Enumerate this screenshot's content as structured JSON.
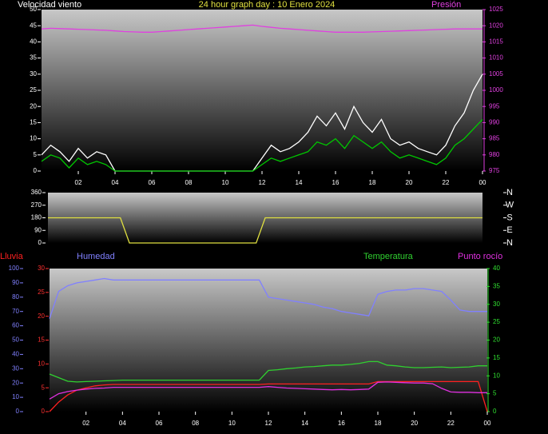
{
  "chart_data": [
    {
      "type": "line",
      "title": "24 hour graph day : 10 Enero 2024",
      "ylabel": "Velocidad viento",
      "y2label": "Presión",
      "x": [
        0,
        0.5,
        1,
        1.5,
        2,
        2.5,
        3,
        3.5,
        4,
        4.5,
        5,
        5.5,
        6,
        6.5,
        7,
        7.5,
        8,
        8.5,
        9,
        9.5,
        10,
        10.5,
        11,
        11.5,
        12,
        12.5,
        13,
        13.5,
        14,
        14.5,
        15,
        15.5,
        16,
        16.5,
        17,
        17.5,
        18,
        18.5,
        19,
        19.5,
        20,
        20.5,
        21,
        21.5,
        22,
        22.5,
        23,
        23.5,
        24
      ],
      "xlim": [
        0,
        24
      ],
      "xticks": [
        {
          "value": 2,
          "label": "02"
        },
        {
          "value": 4,
          "label": "04"
        },
        {
          "value": 6,
          "label": "06"
        },
        {
          "value": 8,
          "label": "08"
        },
        10,
        12,
        14,
        16,
        18,
        20,
        22,
        {
          "value": 24,
          "label": "00"
        }
      ],
      "ylim": [
        0,
        50
      ],
      "yticks": [
        0,
        5,
        10,
        15,
        20,
        25,
        30,
        35,
        40,
        45,
        50
      ],
      "y2lim": [
        975,
        1025
      ],
      "y2ticks": [
        975,
        980,
        985,
        990,
        995,
        1000,
        1005,
        1010,
        1015,
        1020,
        1025
      ],
      "series": [
        {
          "color": "#ffffff",
          "values": [
            5,
            8,
            6,
            3,
            7,
            4,
            6,
            5,
            0,
            0,
            0,
            0,
            0,
            0,
            0,
            0,
            0,
            0,
            0,
            0,
            0,
            0,
            0,
            0,
            4,
            8,
            6,
            7,
            9,
            12,
            17,
            14,
            18,
            13,
            20,
            15,
            12,
            16,
            10,
            8,
            9,
            7,
            6,
            5,
            8,
            14,
            18,
            25,
            30
          ]
        },
        {
          "color": "#00c800",
          "values": [
            3,
            5,
            4,
            1,
            4,
            2,
            3,
            2,
            0,
            0,
            0,
            0,
            0,
            0,
            0,
            0,
            0,
            0,
            0,
            0,
            0,
            0,
            0,
            0,
            2,
            4,
            3,
            4,
            5,
            6,
            9,
            8,
            10,
            7,
            11,
            9,
            7,
            9,
            6,
            4,
            5,
            4,
            3,
            2,
            4,
            8,
            10,
            13,
            16
          ]
        },
        {
          "color": "#e040e0",
          "axis": "y2",
          "values": [
            1019,
            1019.2,
            1019.1,
            1019,
            1018.9,
            1018.8,
            1018.7,
            1018.6,
            1018.4,
            1018.2,
            1018.1,
            1018,
            1018,
            1018.2,
            1018.4,
            1018.6,
            1018.8,
            1019,
            1019.2,
            1019.4,
            1019.6,
            1019.8,
            1020,
            1020.2,
            1019.8,
            1019.5,
            1019.2,
            1019,
            1018.8,
            1018.6,
            1018.4,
            1018.2,
            1018,
            1018,
            1018,
            1018,
            1018.1,
            1018.2,
            1018.3,
            1018.4,
            1018.5,
            1018.6,
            1018.7,
            1018.8,
            1018.9,
            1019,
            1019,
            1019,
            1019
          ]
        }
      ]
    },
    {
      "type": "line",
      "x": [
        0,
        0.5,
        1,
        1.5,
        2,
        2.5,
        3,
        3.5,
        4,
        4.5,
        5,
        5.5,
        6,
        6.5,
        7,
        7.5,
        8,
        8.5,
        9,
        9.5,
        10,
        10.5,
        11,
        11.5,
        12,
        12.5,
        13,
        13.5,
        14,
        14.5,
        15,
        15.5,
        16,
        16.5,
        17,
        17.5,
        18,
        18.5,
        19,
        19.5,
        20,
        20.5,
        21,
        21.5,
        22,
        22.5,
        23,
        23.5,
        24
      ],
      "xlim": [
        0,
        24
      ],
      "ylim": [
        0,
        360
      ],
      "yticks": [
        0,
        90,
        180,
        270,
        360
      ],
      "y2lim": [
        0,
        360
      ],
      "y2ticks": [
        {
          "value": 0,
          "label": "N"
        },
        {
          "value": 90,
          "label": "E"
        },
        {
          "value": 180,
          "label": "S"
        },
        {
          "value": 270,
          "label": "W"
        },
        {
          "value": 360,
          "label": "N"
        }
      ],
      "series": [
        {
          "color": "#e0e040",
          "values": [
            180,
            180,
            180,
            180,
            180,
            180,
            180,
            180,
            180,
            0,
            0,
            0,
            0,
            0,
            0,
            0,
            0,
            0,
            0,
            0,
            0,
            0,
            0,
            0,
            180,
            180,
            180,
            180,
            180,
            180,
            180,
            180,
            180,
            180,
            180,
            180,
            180,
            180,
            180,
            180,
            180,
            180,
            180,
            180,
            180,
            180,
            180,
            180,
            180
          ]
        }
      ]
    },
    {
      "type": "line",
      "x": [
        0,
        0.5,
        1,
        1.5,
        2,
        2.5,
        3,
        3.5,
        4,
        4.5,
        5,
        5.5,
        6,
        6.5,
        7,
        7.5,
        8,
        8.5,
        9,
        9.5,
        10,
        10.5,
        11,
        11.5,
        12,
        12.5,
        13,
        13.5,
        14,
        14.5,
        15,
        15.5,
        16,
        16.5,
        17,
        17.5,
        18,
        18.5,
        19,
        19.5,
        20,
        20.5,
        21,
        21.5,
        22,
        22.5,
        23,
        23.5,
        24
      ],
      "xlim": [
        0,
        24
      ],
      "xticks": [
        {
          "value": 2,
          "label": "02"
        },
        {
          "value": 4,
          "label": "04"
        },
        {
          "value": 6,
          "label": "06"
        },
        {
          "value": 8,
          "label": "08"
        },
        10,
        12,
        14,
        16,
        18,
        20,
        22,
        {
          "value": 24,
          "label": "00"
        }
      ],
      "ylim": [
        0,
        30
      ],
      "yticks": [
        0,
        5,
        10,
        15,
        20,
        25,
        30
      ],
      "y2lim": [
        0,
        40
      ],
      "y2ticks": [
        0,
        5,
        10,
        15,
        20,
        25,
        30,
        35,
        40
      ],
      "y3lim": [
        0,
        100
      ],
      "y3ticks": [
        0,
        10,
        20,
        30,
        40,
        50,
        60,
        70,
        80,
        90,
        100
      ],
      "series": [
        {
          "name": "Lluvia",
          "color": "#ff2020",
          "values": [
            0,
            2,
            3.5,
            4.5,
            5,
            5.4,
            5.6,
            5.7,
            5.7,
            5.7,
            5.7,
            5.7,
            5.7,
            5.7,
            5.7,
            5.7,
            5.7,
            5.7,
            5.7,
            5.7,
            5.7,
            5.7,
            5.7,
            5.7,
            5.8,
            5.8,
            5.8,
            5.8,
            5.8,
            5.8,
            5.8,
            5.8,
            5.8,
            5.8,
            5.8,
            5.8,
            6.3,
            6.3,
            6.3,
            6.3,
            6.3,
            6.3,
            6.3,
            6.3,
            6.3,
            6.3,
            6.3,
            6.3,
            0
          ]
        },
        {
          "name": "Humedad",
          "color": "#8080ff",
          "axis": "y3",
          "values": [
            65,
            84,
            88,
            90,
            91,
            92,
            93,
            92,
            92,
            92,
            92,
            92,
            92,
            92,
            92,
            92,
            92,
            92,
            92,
            92,
            92,
            92,
            92,
            92,
            80,
            79,
            78,
            77,
            76,
            75,
            73,
            72,
            70,
            69,
            68,
            67,
            82,
            84,
            85,
            85,
            86,
            86,
            85,
            84,
            78,
            71,
            70,
            70,
            70
          ]
        },
        {
          "name": "Temperatura",
          "color": "#30d030",
          "axis": "y2",
          "values": [
            10.5,
            9.5,
            8.5,
            8.3,
            8.4,
            8.5,
            8.6,
            8.7,
            8.8,
            8.8,
            8.8,
            8.8,
            8.8,
            8.8,
            8.8,
            8.8,
            8.8,
            8.8,
            8.8,
            8.8,
            8.8,
            8.8,
            8.8,
            8.8,
            11.5,
            11.7,
            12,
            12.2,
            12.5,
            12.6,
            12.8,
            13,
            13,
            13.2,
            13.5,
            14,
            14,
            13,
            12.8,
            12.5,
            12.3,
            12.3,
            12.4,
            12.5,
            12.3,
            12.4,
            12.5,
            12.8,
            12.8
          ]
        },
        {
          "name": "Punto rocío",
          "color": "#e030e0",
          "axis": "y2",
          "values": [
            3.5,
            5,
            5.6,
            6,
            6.3,
            6.5,
            6.6,
            6.8,
            6.8,
            6.8,
            6.8,
            6.8,
            6.8,
            6.8,
            6.8,
            6.8,
            6.8,
            6.8,
            6.8,
            6.8,
            6.8,
            6.8,
            6.8,
            6.8,
            7,
            6.8,
            6.6,
            6.5,
            6.4,
            6.3,
            6.2,
            6.1,
            6.2,
            6.1,
            6.2,
            6.3,
            8.2,
            8.3,
            8.2,
            8.1,
            8,
            8,
            7.8,
            6.5,
            5.5,
            5.4,
            5.4,
            5.3,
            5.3
          ]
        }
      ]
    }
  ]
}
